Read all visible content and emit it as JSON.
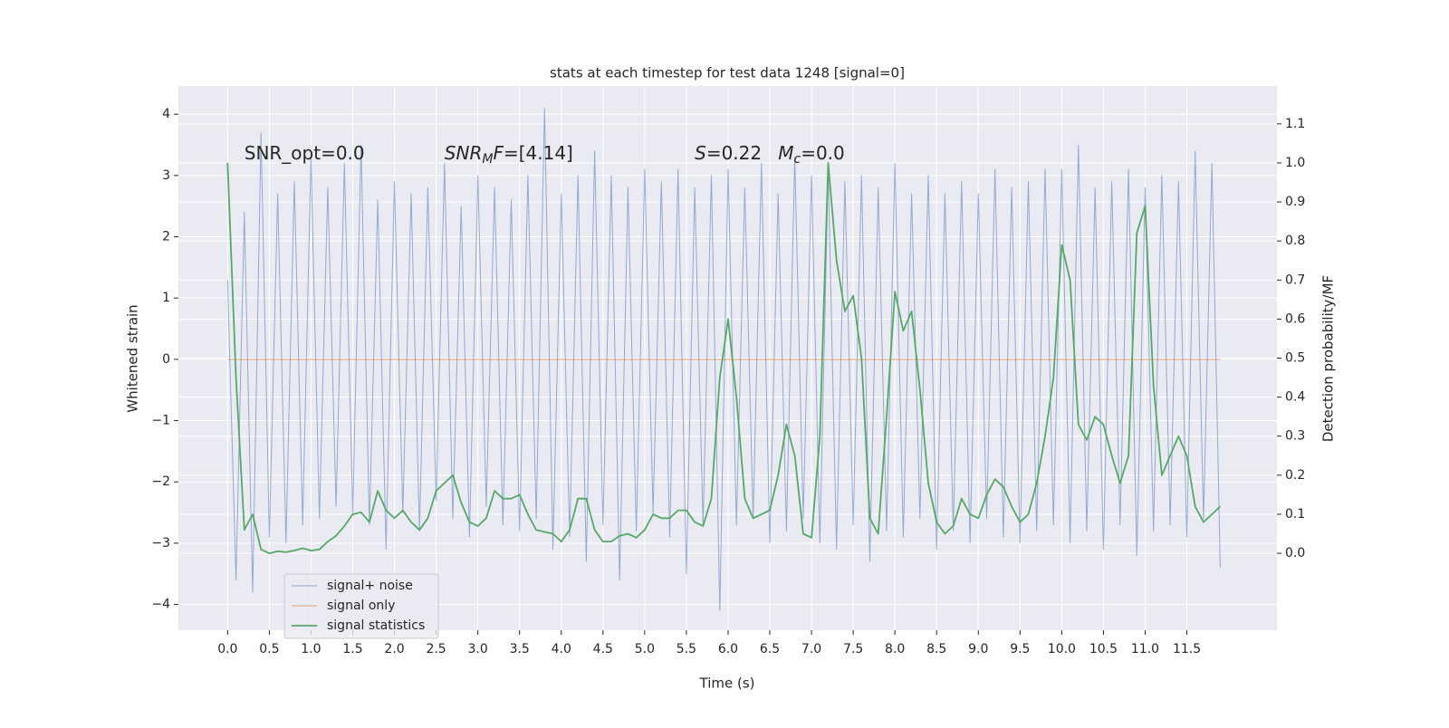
{
  "chart_data": {
    "type": "line",
    "title": "stats at each timestep for test data 1248 [signal=0]",
    "xlabel": "Time (s)",
    "ylabel": "Whitened strain",
    "y2label": "Detection probability/MF",
    "annotations": [
      {
        "x": 0.2,
        "y": 3.35,
        "parts": [
          {
            "text": "SNR_opt=0.0"
          }
        ]
      },
      {
        "x": 2.6,
        "y": 3.35,
        "parts": [
          {
            "text": "SNR",
            "italic": true
          },
          {
            "text": "M",
            "italic": true,
            "sub": true
          },
          {
            "text": "F",
            "italic": true
          },
          {
            "text": "=[4.14]"
          }
        ]
      },
      {
        "x": 5.6,
        "y": 3.35,
        "parts": [
          {
            "text": "S",
            "italic": true
          },
          {
            "text": "=0.22"
          }
        ]
      },
      {
        "x": 6.6,
        "y": 3.35,
        "parts": [
          {
            "text": "M",
            "italic": true
          },
          {
            "text": "c",
            "italic": true,
            "sub": true
          },
          {
            "text": "=0.0"
          }
        ]
      }
    ],
    "x": [
      0.0,
      0.1,
      0.2,
      0.3,
      0.4,
      0.5,
      0.6,
      0.7,
      0.8,
      0.9,
      1.0,
      1.1,
      1.2,
      1.3,
      1.4,
      1.5,
      1.6,
      1.7,
      1.8,
      1.9,
      2.0,
      2.1,
      2.2,
      2.3,
      2.4,
      2.5,
      2.6,
      2.7,
      2.8,
      2.9,
      3.0,
      3.1,
      3.2,
      3.3,
      3.4,
      3.5,
      3.6,
      3.7,
      3.8,
      3.9,
      4.0,
      4.1,
      4.2,
      4.3,
      4.4,
      4.5,
      4.6,
      4.7,
      4.8,
      4.9,
      5.0,
      5.1,
      5.2,
      5.3,
      5.4,
      5.5,
      5.6,
      5.7,
      5.8,
      5.9,
      6.0,
      6.1,
      6.2,
      6.3,
      6.4,
      6.5,
      6.6,
      6.7,
      6.8,
      6.9,
      7.0,
      7.1,
      7.2,
      7.3,
      7.4,
      7.5,
      7.6,
      7.7,
      7.8,
      7.9,
      8.0,
      8.1,
      8.2,
      8.3,
      8.4,
      8.5,
      8.6,
      8.7,
      8.8,
      8.9,
      9.0,
      9.1,
      9.2,
      9.3,
      9.4,
      9.5,
      9.6,
      9.7,
      9.8,
      9.9,
      10.0,
      10.1,
      10.2,
      10.3,
      10.4,
      10.5,
      10.6,
      10.7,
      10.8,
      10.9,
      11.0,
      11.1,
      11.2,
      11.3,
      11.4,
      11.5,
      11.6,
      11.7,
      11.8,
      11.9
    ],
    "series": [
      {
        "name": "signal+ noise",
        "color": "#4c72b0",
        "values": [
          1.3,
          -3.6,
          2.4,
          -3.8,
          3.7,
          -2.9,
          2.7,
          -3.0,
          2.9,
          -2.7,
          3.3,
          -2.6,
          2.8,
          -2.4,
          3.2,
          -2.5,
          3.5,
          -2.7,
          2.6,
          -3.1,
          2.9,
          -2.5,
          2.7,
          -2.8,
          2.8,
          -2.3,
          3.2,
          -2.6,
          2.5,
          -2.9,
          3.0,
          -2.4,
          2.8,
          -2.7,
          2.6,
          -2.8,
          3.0,
          -2.6,
          4.1,
          -3.1,
          2.7,
          -2.9,
          3.0,
          -3.3,
          3.4,
          -2.7,
          3.0,
          -3.6,
          2.8,
          -2.8,
          3.1,
          -2.5,
          2.9,
          -2.9,
          3.1,
          -3.5,
          2.8,
          -2.7,
          3.0,
          -4.1,
          3.1,
          -2.7,
          2.8,
          -2.6,
          3.2,
          -3.0,
          2.7,
          -2.8,
          3.3,
          -2.6,
          3.0,
          -3.0,
          3.1,
          -3.1,
          2.9,
          -2.7,
          3.0,
          -3.3,
          2.8,
          -2.8,
          3.2,
          -2.9,
          2.7,
          -2.6,
          3.0,
          -3.1,
          2.7,
          -2.8,
          2.9,
          -3.0,
          2.7,
          -2.6,
          3.1,
          -2.9,
          2.8,
          -3.0,
          2.9,
          -2.8,
          3.1,
          -2.7,
          3.1,
          -3.0,
          3.5,
          -2.8,
          2.8,
          -3.1,
          2.9,
          -2.7,
          3.1,
          -3.2,
          2.8,
          -2.8,
          3.0,
          -2.7,
          2.9,
          -2.9,
          3.4,
          -2.6,
          3.2,
          -3.4
        ]
      },
      {
        "name": "signal only",
        "color": "#dd8452",
        "values": [
          0,
          0,
          0,
          0,
          0,
          0,
          0,
          0,
          0,
          0,
          0,
          0,
          0,
          0,
          0,
          0,
          0,
          0,
          0,
          0,
          0,
          0,
          0,
          0,
          0,
          0,
          0,
          0,
          0,
          0,
          0,
          0,
          0,
          0,
          0,
          0,
          0,
          0,
          0,
          0,
          0,
          0,
          0,
          0,
          0,
          0,
          0,
          0,
          0,
          0,
          0,
          0,
          0,
          0,
          0,
          0,
          0,
          0,
          0,
          0,
          0,
          0,
          0,
          0,
          0,
          0,
          0,
          0,
          0,
          0,
          0,
          0,
          0,
          0,
          0,
          0,
          0,
          0,
          0,
          0,
          0,
          0,
          0,
          0,
          0,
          0,
          0,
          0,
          0,
          0,
          0,
          0,
          0,
          0,
          0,
          0,
          0,
          0,
          0,
          0,
          0,
          0,
          0,
          0,
          0,
          0,
          0,
          0,
          0,
          0,
          0,
          0,
          0,
          0,
          0,
          0,
          0,
          0,
          0,
          0
        ]
      },
      {
        "name": "signal statistics",
        "color": "#55a868",
        "axis": "y2",
        "values": [
          1.0,
          0.45,
          0.06,
          0.1,
          0.01,
          0.0,
          0.005,
          0.003,
          0.007,
          0.013,
          0.007,
          0.01,
          0.03,
          0.045,
          0.07,
          0.1,
          0.105,
          0.08,
          0.16,
          0.11,
          0.09,
          0.11,
          0.08,
          0.06,
          0.09,
          0.16,
          0.18,
          0.2,
          0.13,
          0.08,
          0.07,
          0.09,
          0.16,
          0.14,
          0.14,
          0.15,
          0.1,
          0.06,
          0.055,
          0.05,
          0.03,
          0.06,
          0.14,
          0.14,
          0.06,
          0.03,
          0.03,
          0.045,
          0.05,
          0.04,
          0.06,
          0.1,
          0.09,
          0.09,
          0.11,
          0.11,
          0.08,
          0.07,
          0.14,
          0.45,
          0.6,
          0.4,
          0.14,
          0.09,
          0.1,
          0.11,
          0.2,
          0.33,
          0.25,
          0.05,
          0.04,
          0.3,
          1.0,
          0.75,
          0.62,
          0.66,
          0.5,
          0.09,
          0.05,
          0.35,
          0.67,
          0.57,
          0.62,
          0.42,
          0.18,
          0.08,
          0.05,
          0.07,
          0.14,
          0.1,
          0.09,
          0.15,
          0.19,
          0.17,
          0.12,
          0.08,
          0.1,
          0.18,
          0.3,
          0.45,
          0.79,
          0.7,
          0.33,
          0.29,
          0.35,
          0.33,
          0.25,
          0.18,
          0.25,
          0.82,
          0.89,
          0.43,
          0.2,
          0.25,
          0.3,
          0.25,
          0.12,
          0.08,
          0.1,
          0.12
        ]
      }
    ],
    "xlim": [
      -0.59,
      12.58
    ],
    "ylim": [
      -4.42,
      4.46
    ],
    "y2lim": [
      -0.197,
      1.197
    ],
    "xticks": [
      {
        "value": 0,
        "label": "0.0"
      },
      0.5,
      {
        "value": 1,
        "label": "1.0"
      },
      1.5,
      {
        "value": 2,
        "label": "2.0"
      },
      2.5,
      {
        "value": 3,
        "label": "3.0"
      },
      3.5,
      {
        "value": 4,
        "label": "4.0"
      },
      4.5,
      {
        "value": 5,
        "label": "5.0"
      },
      5.5,
      {
        "value": 6,
        "label": "6.0"
      },
      6.5,
      {
        "value": 7,
        "label": "7.0"
      },
      7.5,
      {
        "value": 8,
        "label": "8.0"
      },
      8.5,
      {
        "value": 9,
        "label": "9.0"
      },
      9.5,
      {
        "value": 10,
        "label": "10.0"
      },
      10.5,
      {
        "value": 11,
        "label": "11.0"
      },
      11.5
    ],
    "yticks": [
      {
        "value": -4,
        "label": "−4"
      },
      {
        "value": -3,
        "label": "−3"
      },
      {
        "value": -2,
        "label": "−2"
      },
      {
        "value": -1,
        "label": "−1"
      },
      0,
      1,
      2,
      3,
      4
    ],
    "y2ticks": [
      {
        "value": 0,
        "label": "0.0"
      },
      0.1,
      0.2,
      0.3,
      0.4,
      0.5,
      0.6,
      0.7,
      0.8,
      0.9,
      {
        "value": 1,
        "label": "1.0"
      },
      1.1
    ],
    "grid": true,
    "legend": "lower left"
  }
}
